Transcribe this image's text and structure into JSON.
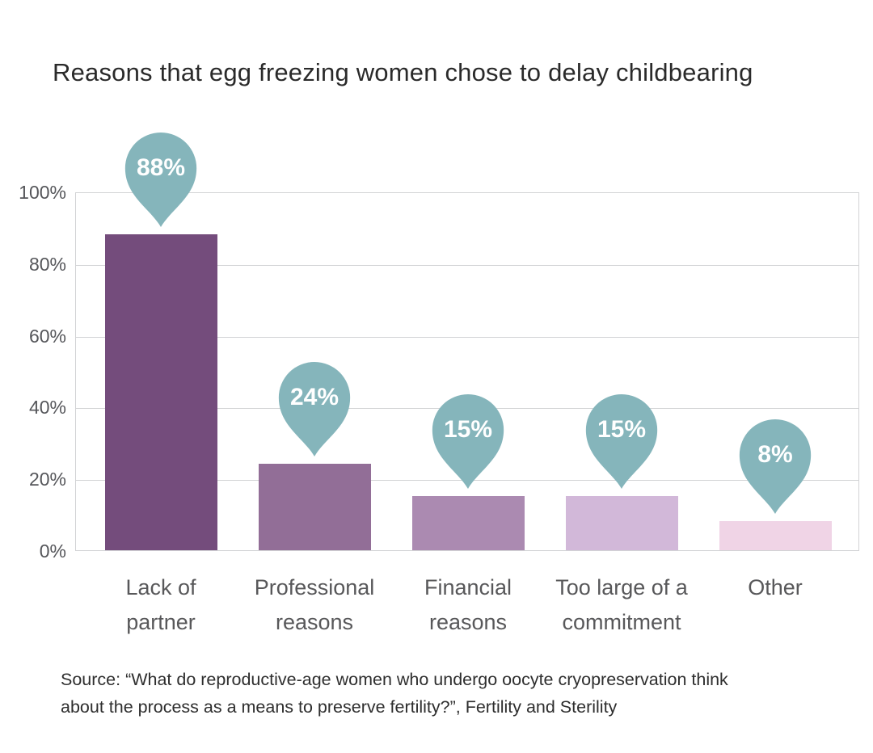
{
  "title": "Reasons that egg freezing women chose to delay childbearing",
  "source_lines": [
    "Source: “What do reproductive-age women who undergo oocyte cryopreservation think",
    "about the process as a means to preserve fertility?”, Fertility and Sterility"
  ],
  "colors": {
    "bar_colors": [
      "#744c7c",
      "#926e97",
      "#ab8ab1",
      "#d2b8d9",
      "#f0d4e6"
    ],
    "marker_color": "#85b5bb",
    "marker_text_color": "#ffffff",
    "grid_color": "#d2d3d5",
    "axis_text_color": "#55565a"
  },
  "chart_data": {
    "type": "bar",
    "title": "Reasons that egg freezing women chose to delay childbearing",
    "categories": [
      "Lack of partner",
      "Professional reasons",
      "Financial reasons",
      "Too large of a commitment",
      "Other"
    ],
    "category_lines": [
      [
        "Lack of",
        "partner"
      ],
      [
        "Professional",
        "reasons"
      ],
      [
        "Financial",
        "reasons"
      ],
      [
        "Too large of a",
        "commitment"
      ],
      [
        "Other"
      ]
    ],
    "values": [
      88,
      24,
      15,
      15,
      8
    ],
    "data_labels": [
      "88%",
      "24%",
      "15%",
      "15%",
      "8%"
    ],
    "xlabel": "",
    "ylabel": "",
    "ylim": [
      0,
      100
    ],
    "ytick_values": [
      100,
      80,
      60,
      40,
      20,
      0
    ],
    "ytick_labels": [
      "100%",
      "80%",
      "60%",
      "40%",
      "20%",
      "0%"
    ],
    "grid": true,
    "legend": false
  }
}
